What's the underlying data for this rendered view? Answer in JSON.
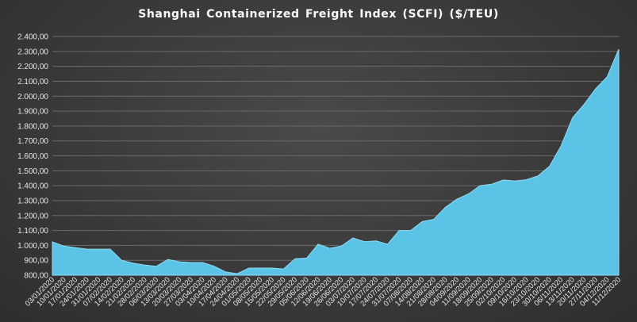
{
  "chart_data": {
    "type": "area",
    "title": "Shanghai Containerized Freight Index  (SCFI) ($/TEU)",
    "xlabel": "",
    "ylabel": "",
    "ylim": [
      800,
      2400
    ],
    "y_ticks": [
      "800,00",
      "900,00",
      "1.000,00",
      "1.100,00",
      "1.200,00",
      "1.300,00",
      "1.400,00",
      "1.500,00",
      "1.600,00",
      "1.700,00",
      "1.800,00",
      "1.900,00",
      "2.000,00",
      "2.100,00",
      "2.200,00",
      "2.300,00",
      "2.400,00"
    ],
    "x": [
      "03/01/2020",
      "10/01/2020",
      "17/01/2020",
      "24/01/2020",
      "31/01/2020",
      "07/02/2020",
      "14/02/2020",
      "21/02/2020",
      "28/02/2020",
      "06/03/2020",
      "13/03/2020",
      "20/03/2020",
      "27/03/2020",
      "03/04/2020",
      "10/04/2020",
      "17/04/2020",
      "24/04/2020",
      "01/05/2020",
      "08/05/2020",
      "15/05/2020",
      "22/05/2020",
      "29/05/2020",
      "05/06/2020",
      "12/06/2020",
      "19/06/2020",
      "26/06/2020",
      "03/07/2020",
      "10/07/2020",
      "17/07/2020",
      "24/07/2020",
      "31/07/2020",
      "07/08/2020",
      "14/08/2020",
      "21/08/2020",
      "28/08/2020",
      "04/09/2020",
      "11/09/2020",
      "18/09/2020",
      "25/09/2020",
      "02/10/2020",
      "09/10/2020",
      "16/10/2020",
      "23/10/2020",
      "30/10/2020",
      "06/11/2020",
      "13/11/2020",
      "20/11/2020",
      "27/11/2020",
      "04/12/2020",
      "11/12/2020"
    ],
    "series": [
      {
        "values": [
          1023,
          995,
          985,
          975,
          975,
          975,
          900,
          880,
          868,
          860,
          905,
          890,
          885,
          885,
          860,
          822,
          810,
          848,
          848,
          848,
          842,
          910,
          915,
          1008,
          980,
          995,
          1050,
          1025,
          1030,
          1008,
          1100,
          1100,
          1160,
          1175,
          1255,
          1310,
          1345,
          1400,
          1410,
          1438,
          1432,
          1440,
          1465,
          1530,
          1665,
          1855,
          1945,
          2050,
          2130,
          2315
        ]
      }
    ],
    "fill_color": "#5bc4e6",
    "grid": true
  }
}
